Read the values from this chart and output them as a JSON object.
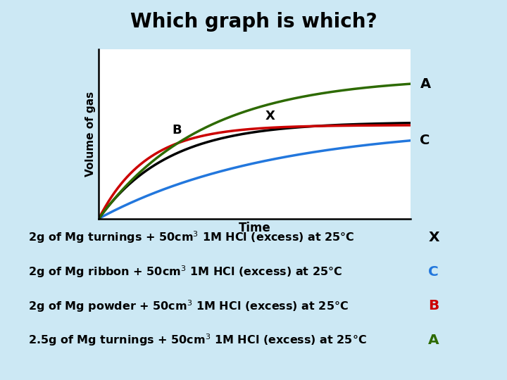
{
  "title": "Which graph is which?",
  "title_bg_color": "#29c4e0",
  "title_fontsize": 20,
  "title_fontweight": "bold",
  "bg_color": "#cce8f4",
  "plot_bg_color": "#ffffff",
  "xlabel": "Time",
  "ylabel": "Volume of gas",
  "curves": {
    "A": {
      "color": "#2d6a00",
      "rate": 3.0,
      "asymptote": 0.88,
      "lw": 2.5
    },
    "B": {
      "color": "#cc0000",
      "rate": 6.5,
      "asymptote": 0.58,
      "lw": 2.5
    },
    "X": {
      "color": "#000000",
      "rate": 4.5,
      "asymptote": 0.6,
      "lw": 2.5
    },
    "C": {
      "color": "#2277dd",
      "rate": 1.8,
      "asymptote": 0.58,
      "lw": 2.5
    }
  },
  "annotations": [
    {
      "text": "2g of Mg turnings + 50cm³ 1M HCl (excess) at 25°C",
      "answer": "X",
      "answer_color": "#000000"
    },
    {
      "text": "2g of Mg ribbon + 50cm³ 1M HCl (excess) at 25°C",
      "answer": "C",
      "answer_color": "#2277dd"
    },
    {
      "text": "2g of Mg powder + 50cm³ 1M HCl (excess) at 25°C",
      "answer": "B",
      "answer_color": "#cc0000"
    },
    {
      "text": "2.5g of Mg turnings + 50cm³ 1M HCl (excess) at 25°C",
      "answer": "A",
      "answer_color": "#2d6a00"
    }
  ],
  "annotation_fontsize": 11.5
}
